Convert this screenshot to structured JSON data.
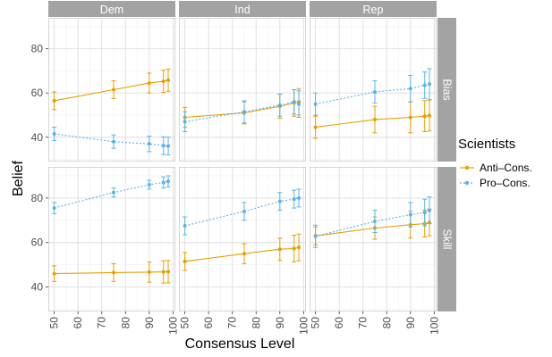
{
  "chart_data": {
    "type": "line",
    "xlabel": "Consensus Level",
    "ylabel": "Belief",
    "col_facets": [
      "Dem",
      "Ind",
      "Rep"
    ],
    "row_facets": [
      "Bias",
      "Skill"
    ],
    "x_ticks": [
      50,
      60,
      70,
      80,
      90,
      100
    ],
    "x_tick_labels": [
      "50",
      "60",
      "70",
      "80",
      "90",
      "100"
    ],
    "y_ticks": [
      40,
      60,
      80
    ],
    "y_tick_labels": [
      "40",
      "60",
      "80"
    ],
    "xlim": [
      47.5,
      101
    ],
    "ylim": [
      29,
      94
    ],
    "grid": true,
    "legend": {
      "title": "Scientists",
      "position": "right",
      "entries": [
        {
          "label": "Anti–Cons.",
          "color": "#E69F00",
          "linetype": "solid"
        },
        {
          "label": "Pro–Cons.",
          "color": "#56B4E9",
          "linetype": "dotted"
        }
      ]
    },
    "x": [
      50,
      75,
      90,
      96,
      98
    ],
    "panels": [
      {
        "col": "Dem",
        "row": "Bias",
        "series": [
          {
            "legend": "Anti–Cons.",
            "y": [
              56.5,
              61.5,
              64.5,
              65.3,
              65.8
            ],
            "err": [
              4,
              4,
              4.5,
              5,
              5
            ]
          },
          {
            "legend": "Pro–Cons.",
            "y": [
              41.5,
              38.0,
              37.0,
              36.2,
              36.0
            ],
            "err": [
              3,
              3,
              3.5,
              4,
              4
            ]
          }
        ]
      },
      {
        "col": "Ind",
        "row": "Bias",
        "series": [
          {
            "legend": "Anti–Cons.",
            "y": [
              49.0,
              51.0,
              54.0,
              55.5,
              56.0
            ],
            "err": [
              4.5,
              5,
              5.5,
              6,
              6
            ]
          },
          {
            "legend": "Pro–Cons.",
            "y": [
              47.0,
              51.5,
              54.5,
              56.0,
              55.0
            ],
            "err": [
              4.5,
              5,
              5,
              5.5,
              6
            ]
          }
        ]
      },
      {
        "col": "Rep",
        "row": "Bias",
        "series": [
          {
            "legend": "Anti–Cons.",
            "y": [
              44.5,
              48.0,
              49.0,
              49.5,
              49.8
            ],
            "err": [
              5,
              6,
              7,
              7,
              7
            ]
          },
          {
            "legend": "Pro–Cons.",
            "y": [
              55.0,
              60.5,
              62.0,
              63.5,
              64.0
            ],
            "err": [
              5,
              5,
              6,
              6,
              7
            ]
          }
        ]
      },
      {
        "col": "Dem",
        "row": "Skill",
        "series": [
          {
            "legend": "Anti–Cons.",
            "y": [
              46.0,
              46.5,
              46.7,
              46.8,
              46.9
            ],
            "err": [
              3.5,
              4,
              4.5,
              5,
              5
            ]
          },
          {
            "legend": "Pro–Cons.",
            "y": [
              75.5,
              82.5,
              86.0,
              87.0,
              87.5
            ],
            "err": [
              2.5,
              2,
              2,
              2.5,
              2.5
            ]
          }
        ]
      },
      {
        "col": "Ind",
        "row": "Skill",
        "series": [
          {
            "legend": "Anti–Cons.",
            "y": [
              51.5,
              55.0,
              57.0,
              57.3,
              57.8
            ],
            "err": [
              4,
              4.5,
              5,
              6,
              6
            ]
          },
          {
            "legend": "Pro–Cons.",
            "y": [
              67.5,
              74.0,
              78.5,
              79.5,
              80.0
            ],
            "err": [
              4,
              4,
              4,
              4,
              4
            ]
          }
        ]
      },
      {
        "col": "Rep",
        "row": "Skill",
        "series": [
          {
            "legend": "Anti–Cons.",
            "y": [
              63.0,
              66.5,
              68.0,
              68.5,
              69.0
            ],
            "err": [
              4,
              5,
              6,
              6,
              6
            ]
          },
          {
            "legend": "Pro–Cons.",
            "y": [
              62.8,
              69.5,
              72.5,
              73.5,
              74.5
            ],
            "err": [
              5,
              5,
              5.5,
              6,
              6
            ]
          }
        ]
      }
    ]
  }
}
